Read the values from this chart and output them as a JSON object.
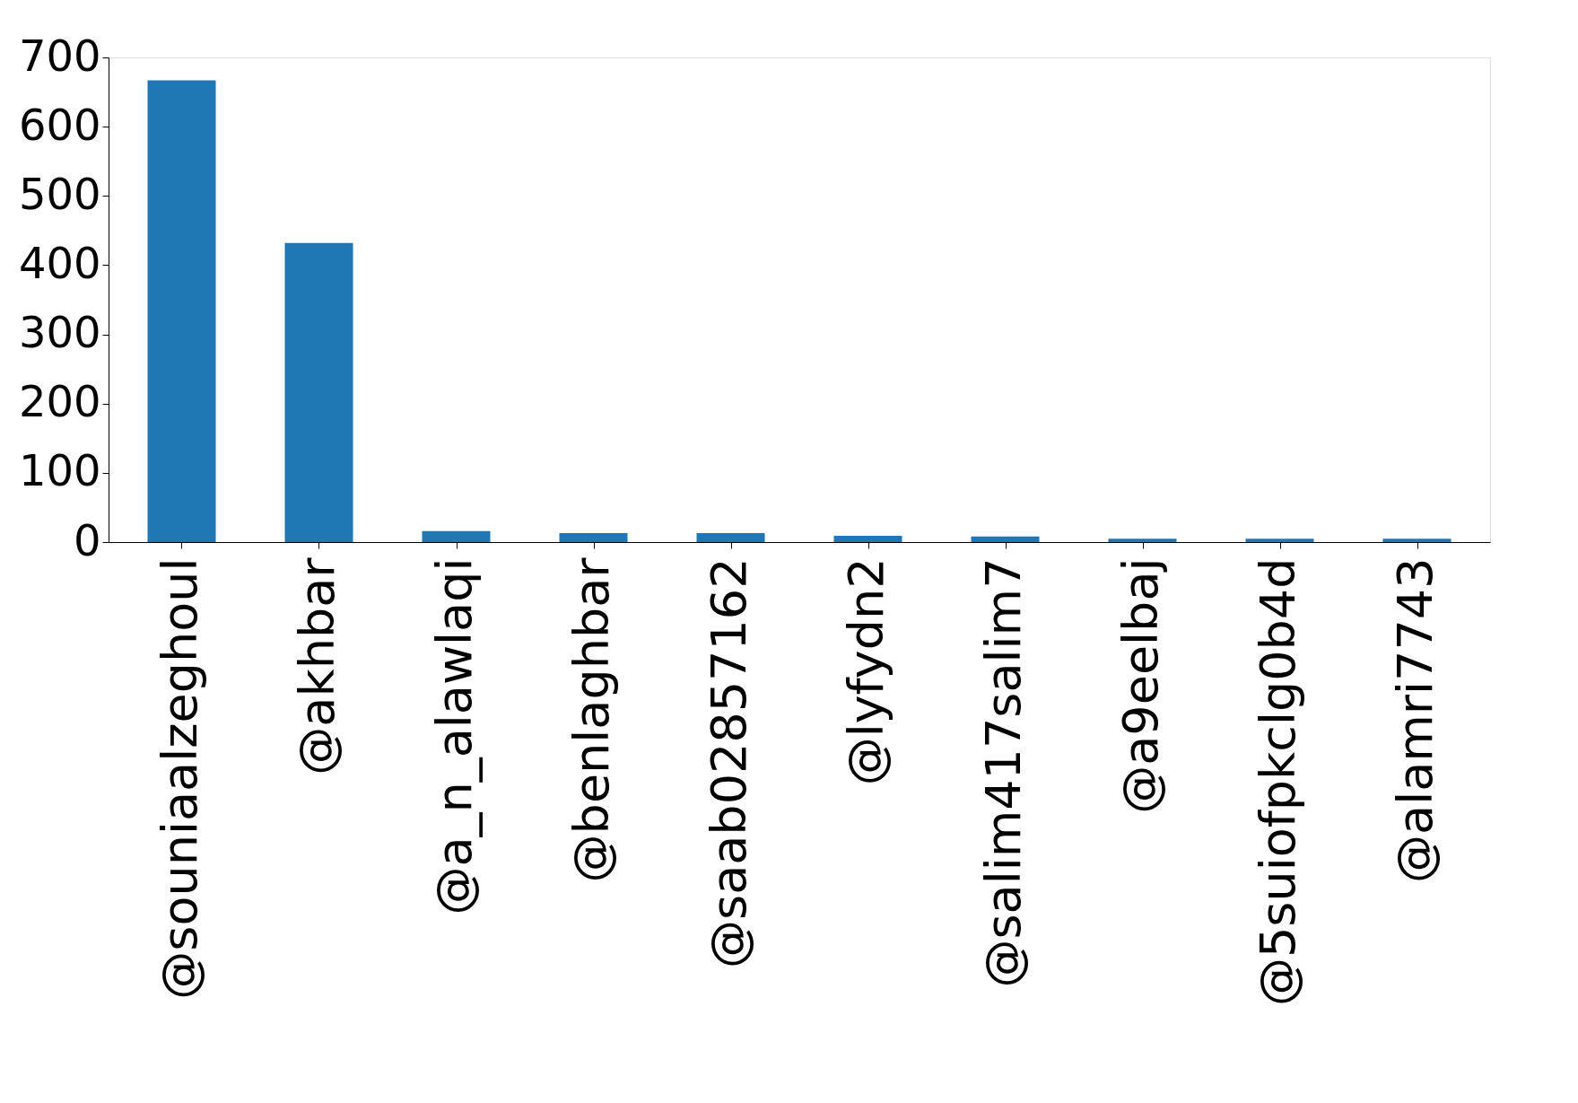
{
  "chart_data": {
    "type": "bar",
    "categories": [
      "@souniaalzeghoul",
      "@akhbar",
      "@a_n_alawlaqi",
      "@benlaghbar",
      "@saab02857162",
      "@lyfydn2",
      "@salim417salim7",
      "@a9eelbaj",
      "@5suiofpkclg0b4d",
      "@alamri7743"
    ],
    "values": [
      667,
      432,
      16,
      13,
      13,
      9,
      8,
      5,
      5,
      5
    ],
    "color": "#1f77b4",
    "ylim": [
      0,
      700
    ],
    "yticks": [
      0,
      100,
      200,
      300,
      400,
      500,
      600,
      700
    ],
    "grid": false
  }
}
